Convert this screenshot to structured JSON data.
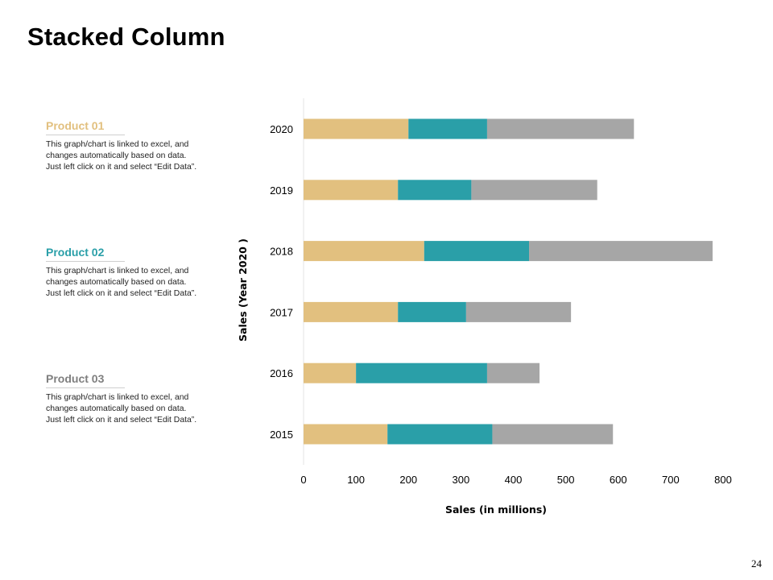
{
  "slide": {
    "title": "Stacked Column",
    "page_number": "24"
  },
  "legend": [
    {
      "heading": "Product 01",
      "color": "#E2C07F",
      "text": "This graph/chart is linked to excel, and changes automatically based on data. Just left click on it and select “Edit Data”."
    },
    {
      "heading": "Product 02",
      "color": "#2A9FA8",
      "text": "This graph/chart is linked to excel, and changes automatically based on data. Just left click on it and select “Edit Data”."
    },
    {
      "heading": "Product 03",
      "color": "#7F7F7F",
      "text": "This graph/chart is linked to excel, and changes automatically based on data. Just left click on it and select “Edit Data”."
    }
  ],
  "chart_data": {
    "type": "bar",
    "orientation": "horizontal",
    "stacked": true,
    "categories": [
      "2015",
      "2016",
      "2017",
      "2018",
      "2019",
      "2020"
    ],
    "series": [
      {
        "color": "#E2C07F",
        "values": [
          160,
          100,
          180,
          230,
          180,
          200
        ]
      },
      {
        "color": "#2A9FA8",
        "values": [
          200,
          250,
          130,
          200,
          140,
          150
        ]
      },
      {
        "color": "#A6A6A6",
        "values": [
          230,
          100,
          200,
          350,
          240,
          280
        ]
      }
    ],
    "xlabel": "Sales (in millions)",
    "ylabel": "Sales (Year 2020 )",
    "xlim": [
      0,
      800
    ],
    "xticks": [
      0,
      100,
      200,
      300,
      400,
      500,
      600,
      700,
      800
    ],
    "grid": false
  }
}
